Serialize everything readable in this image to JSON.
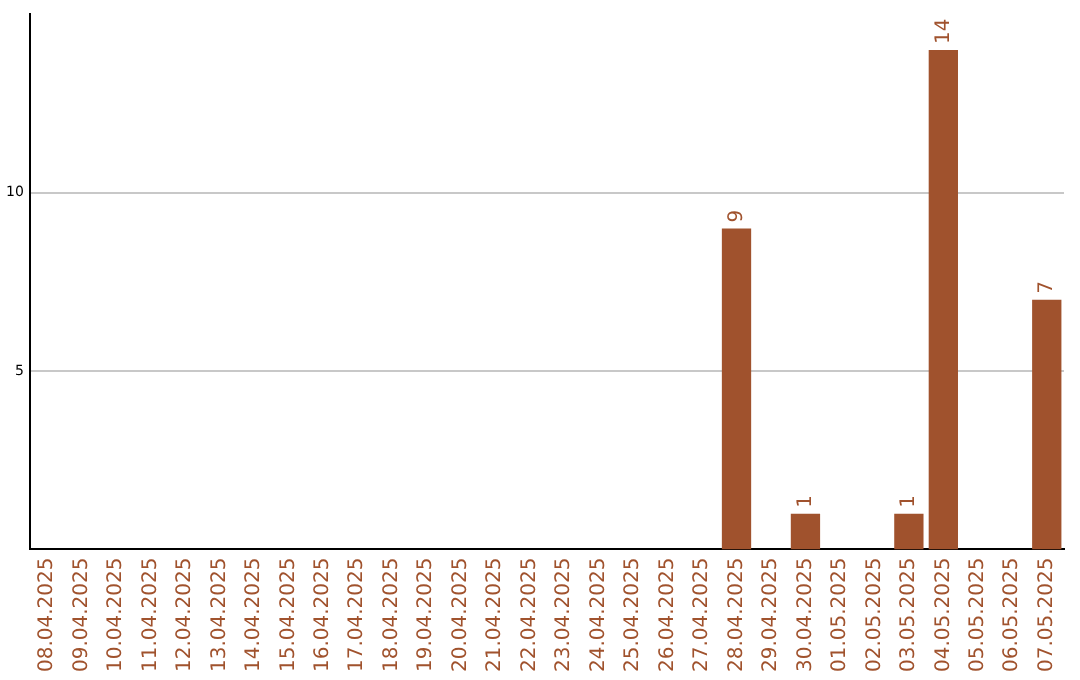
{
  "chart_data": {
    "type": "bar",
    "categories": [
      "08.04.2025",
      "09.04.2025",
      "10.04.2025",
      "11.04.2025",
      "12.04.2025",
      "13.04.2025",
      "14.04.2025",
      "15.04.2025",
      "16.04.2025",
      "17.04.2025",
      "18.04.2025",
      "19.04.2025",
      "20.04.2025",
      "21.04.2025",
      "22.04.2025",
      "23.04.2025",
      "24.04.2025",
      "25.04.2025",
      "26.04.2025",
      "27.04.2025",
      "28.04.2025",
      "29.04.2025",
      "30.04.2025",
      "01.05.2025",
      "02.05.2025",
      "03.05.2025",
      "04.05.2025",
      "05.05.2025",
      "06.05.2025",
      "07.05.2025"
    ],
    "values": [
      0,
      0,
      0,
      0,
      0,
      0,
      0,
      0,
      0,
      0,
      0,
      0,
      0,
      0,
      0,
      0,
      0,
      0,
      0,
      0,
      9,
      0,
      1,
      0,
      0,
      1,
      14,
      0,
      0,
      7
    ],
    "value_labels": [
      null,
      null,
      null,
      null,
      null,
      null,
      null,
      null,
      null,
      null,
      null,
      null,
      null,
      null,
      null,
      null,
      null,
      null,
      null,
      null,
      "9",
      null,
      "1",
      null,
      null,
      "1",
      "14",
      null,
      null,
      "7"
    ],
    "color": "#a0522d",
    "ylim": [
      0,
      15
    ],
    "yticks": [
      5,
      10
    ],
    "grid": "y"
  }
}
